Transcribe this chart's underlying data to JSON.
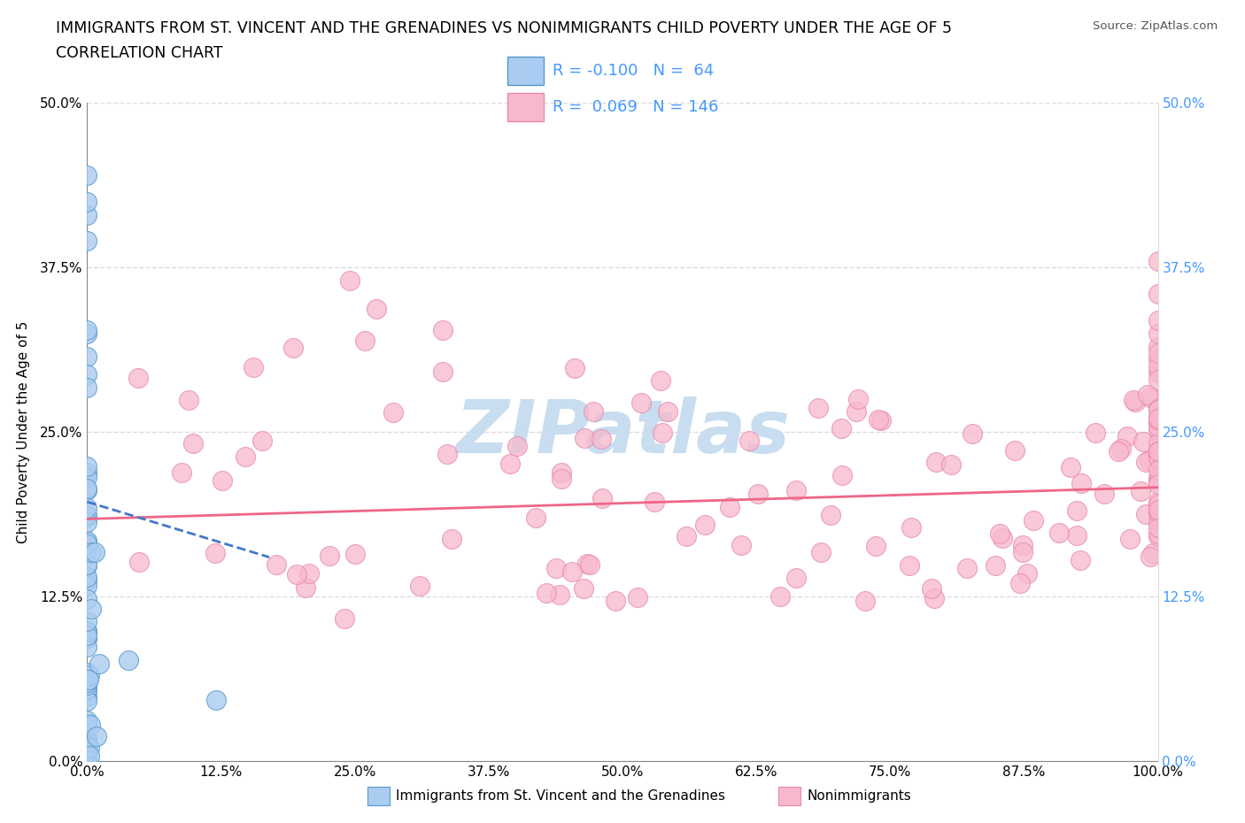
{
  "title_line1": "IMMIGRANTS FROM ST. VINCENT AND THE GRENADINES VS NONIMMIGRANTS CHILD POVERTY UNDER THE AGE OF 5",
  "title_line2": "CORRELATION CHART",
  "source_text": "Source: ZipAtlas.com",
  "ylabel": "Child Poverty Under the Age of 5",
  "xlim": [
    0,
    1.0
  ],
  "ylim": [
    0,
    0.5
  ],
  "xtick_labels": [
    "0.0%",
    "12.5%",
    "25.0%",
    "37.5%",
    "50.0%",
    "62.5%",
    "75.0%",
    "87.5%",
    "100.0%"
  ],
  "xtick_vals": [
    0,
    0.125,
    0.25,
    0.375,
    0.5,
    0.625,
    0.75,
    0.875,
    1.0
  ],
  "ytick_labels": [
    "0.0%",
    "12.5%",
    "25.0%",
    "37.5%",
    "50.0%"
  ],
  "ytick_vals": [
    0,
    0.125,
    0.25,
    0.375,
    0.5
  ],
  "immigrants_color": "#aaccf0",
  "immigrants_edge_color": "#5599cc",
  "nonimmigrants_color": "#f8b8cc",
  "nonimmigrants_edge_color": "#e888aa",
  "trendline_immigrants_color": "#4477cc",
  "trendline_nonimmigrants_color": "#ee6688",
  "legend_R_immigrants": "-0.100",
  "legend_N_immigrants": "64",
  "legend_R_nonimmigrants": "0.069",
  "legend_N_nonimmigrants": "146",
  "watermark": "ZIPatlas",
  "watermark_color": "#c8ddf0",
  "grid_color": "#cccccc",
  "background_color": "#ffffff",
  "right_axis_color": "#4499ff"
}
